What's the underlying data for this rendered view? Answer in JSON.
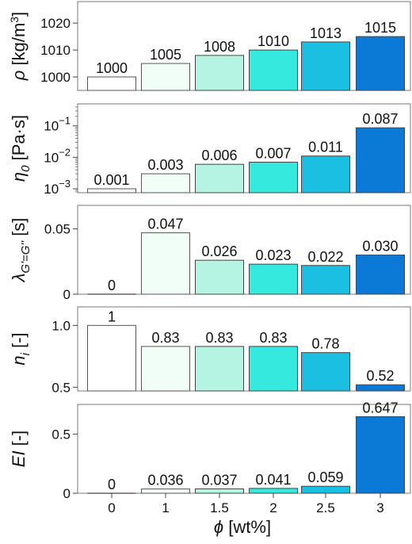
{
  "chart_data": {
    "type": "bar",
    "categories": [
      "0",
      "1",
      "1.5",
      "2",
      "2.5",
      "3"
    ],
    "colors": [
      "#ffffff",
      "#f1fef7",
      "#b5f4e2",
      "#35e9de",
      "#1bbfe2",
      "#0b7ad7"
    ],
    "xlabel": {
      "main": "ϕ",
      "unit": " [wt%]"
    },
    "panels": [
      {
        "id": "density",
        "ylabel": {
          "main": "ρ",
          "unit": " [kg/m",
          "sup": "3",
          "tail": "]"
        },
        "scale": "linear",
        "ylim": [
          995,
          1028
        ],
        "ticks": [
          1000,
          1010,
          1020
        ],
        "tick_labels": [
          "1000",
          "1010",
          "1020"
        ],
        "values": [
          1000,
          1005,
          1008,
          1010,
          1013,
          1015
        ],
        "labels": [
          "1000",
          "1005",
          "1008",
          "1010",
          "1013",
          "1015"
        ]
      },
      {
        "id": "viscosity",
        "ylabel": {
          "main": "η",
          "sub": "0",
          "unit": " [Pa·s]"
        },
        "scale": "log",
        "ylim": [
          0.00075,
          0.5
        ],
        "ticks": [
          0.001,
          0.01,
          0.1
        ],
        "tick_labels": [
          {
            "base": "10",
            "exp": "−3"
          },
          {
            "base": "10",
            "exp": "−2"
          },
          {
            "base": "10",
            "exp": "−1"
          }
        ],
        "values": [
          0.001,
          0.003,
          0.006,
          0.007,
          0.011,
          0.087
        ],
        "labels": [
          "0.001",
          "0.003",
          "0.006",
          "0.007",
          "0.011",
          "0.087"
        ]
      },
      {
        "id": "relaxation-time",
        "ylabel": {
          "main": "λ",
          "sub": "G'=G''",
          "unit": " [s]"
        },
        "scale": "linear",
        "ylim": [
          0,
          0.068
        ],
        "ticks": [
          0,
          0.05
        ],
        "tick_labels": [
          "0",
          "0.05"
        ],
        "values": [
          0,
          0.047,
          0.026,
          0.023,
          0.022,
          0.03
        ],
        "labels": [
          "0",
          "0.047",
          "0.026",
          "0.023",
          "0.022",
          "0.030"
        ]
      },
      {
        "id": "flow-index",
        "ylabel": {
          "main": "n",
          "sub": "i",
          "unit": " [-]"
        },
        "scale": "linear",
        "ylim": [
          0.47,
          1.15
        ],
        "ticks": [
          0.5,
          1.0
        ],
        "tick_labels": [
          "0.5",
          "1.0"
        ],
        "values": [
          1,
          0.83,
          0.83,
          0.83,
          0.78,
          0.52
        ],
        "labels": [
          "1",
          "0.83",
          "0.83",
          "0.83",
          "0.78",
          "0.52"
        ]
      },
      {
        "id": "elasticity-index",
        "ylabel": {
          "main": "EI",
          "unit": " [-]"
        },
        "scale": "linear",
        "ylim": [
          0,
          0.75
        ],
        "ticks": [
          0,
          0.5
        ],
        "tick_labels": [
          "0",
          "0.5"
        ],
        "values": [
          0,
          0.036,
          0.037,
          0.041,
          0.059,
          0.647
        ],
        "labels": [
          "0",
          "0.036",
          "0.037",
          "0.041",
          "0.059",
          "0.647"
        ]
      }
    ]
  }
}
